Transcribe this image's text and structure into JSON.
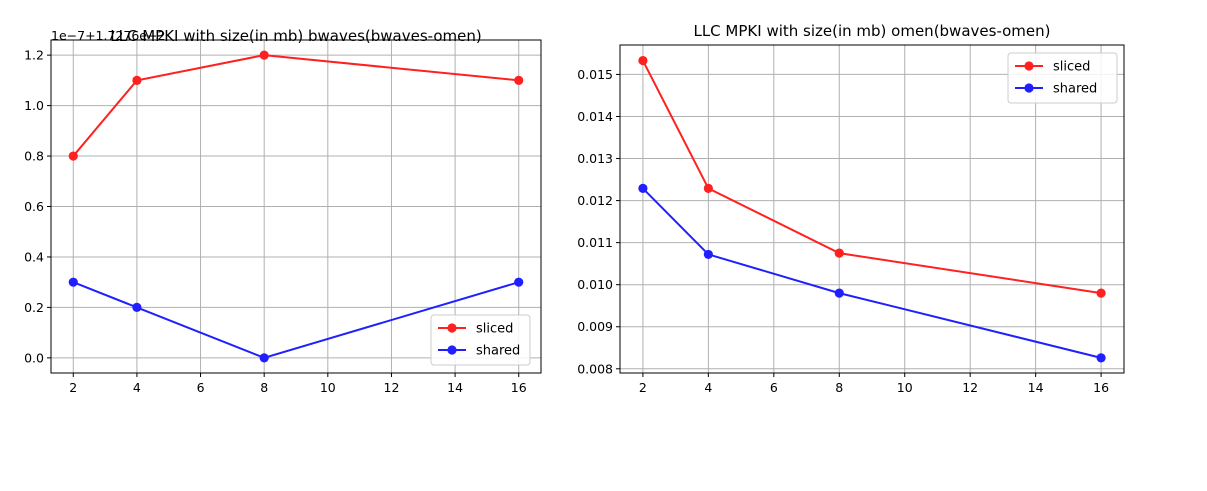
{
  "chart_data": [
    {
      "type": "line",
      "title": "LLC MPKI with size(in mb) bwaves(bwaves-omen)",
      "xlabel": "",
      "ylabel": "",
      "x": [
        2,
        4,
        8,
        16
      ],
      "series": [
        {
          "name": "sliced",
          "color": "#ff2020",
          "values": [
            0.8,
            1.1,
            1.2,
            1.1
          ]
        },
        {
          "name": "shared",
          "color": "#2020ff",
          "values": [
            0.3,
            0.2,
            0.0,
            0.3
          ]
        }
      ],
      "xlim": [
        1.3,
        16.7
      ],
      "ylim": [
        -0.06,
        1.26
      ],
      "xticks": [
        2,
        4,
        6,
        8,
        10,
        12,
        14,
        16
      ],
      "yticks": [
        0.0,
        0.2,
        0.4,
        0.6,
        0.8,
        1.0,
        1.2
      ],
      "ytick_labels": [
        "0.0",
        "0.2",
        "0.4",
        "0.6",
        "0.8",
        "1.0",
        "1.2"
      ],
      "y_offset_text": "1e−7+1.7276e−2",
      "grid": true,
      "legend_position": "lower-right"
    },
    {
      "type": "line",
      "title": "LLC MPKI with size(in mb) omen(bwaves-omen)",
      "xlabel": "",
      "ylabel": "",
      "x": [
        2,
        4,
        8,
        16
      ],
      "series": [
        {
          "name": "sliced",
          "color": "#ff2020",
          "values": [
            0.01533,
            0.01229,
            0.01075,
            0.0098
          ]
        },
        {
          "name": "shared",
          "color": "#2020ff",
          "values": [
            0.01229,
            0.01072,
            0.0098,
            0.00826
          ]
        }
      ],
      "xlim": [
        1.3,
        16.7
      ],
      "ylim": [
        0.0079,
        0.0157
      ],
      "xticks": [
        2,
        4,
        6,
        8,
        10,
        12,
        14,
        16
      ],
      "yticks": [
        0.008,
        0.009,
        0.01,
        0.011,
        0.012,
        0.013,
        0.014,
        0.015
      ],
      "ytick_labels": [
        "0.008",
        "0.009",
        "0.010",
        "0.011",
        "0.012",
        "0.013",
        "0.014",
        "0.015"
      ],
      "grid": true,
      "legend_position": "upper-right"
    }
  ]
}
